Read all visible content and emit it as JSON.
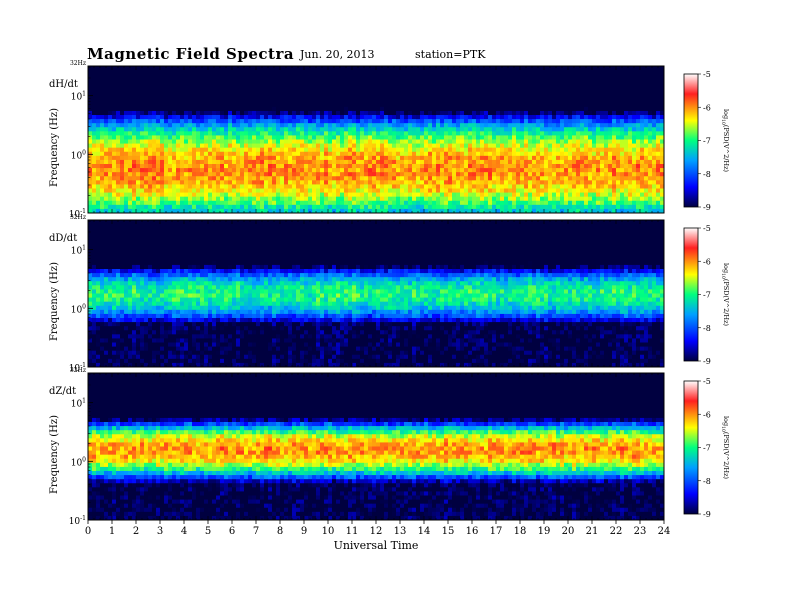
{
  "header": {
    "title": "Magnetic Field Spectra",
    "date": "Jun. 20, 2013",
    "station": "station=PTK"
  },
  "chart_data": {
    "type": "heatmap",
    "x_label": "Universal Time",
    "x_ticks": [
      "0",
      "1",
      "2",
      "3",
      "4",
      "5",
      "6",
      "7",
      "8",
      "9",
      "10",
      "11",
      "12",
      "13",
      "14",
      "15",
      "16",
      "17",
      "18",
      "19",
      "20",
      "21",
      "22",
      "23",
      "24"
    ],
    "xlim": [
      0,
      24
    ],
    "y_label": "Frequency (Hz)",
    "y_scale": "log",
    "ylim": [
      0.1,
      32
    ],
    "y_top_label": "32Hz",
    "y_ticks": [
      {
        "base": "10",
        "exp": "-1",
        "value": 0.1
      },
      {
        "base": "10",
        "exp": "0",
        "value": 1
      },
      {
        "base": "10",
        "exp": "1",
        "value": 10
      }
    ],
    "colorbar": {
      "label_parts": {
        "base": "log",
        "sub": "10",
        "rest": "(PSD(V^2/Hz)"
      },
      "range": [
        -9,
        -5
      ],
      "ticks": [
        "-5",
        "-6",
        "-7",
        "-8",
        "-9"
      ]
    },
    "panels": [
      {
        "name": "dH/dt",
        "peak_band_hz": [
          0.1,
          3
        ],
        "peak_level": -6.0,
        "background_level": -9.0
      },
      {
        "name": "dD/dt",
        "peak_band_hz": [
          1,
          3
        ],
        "peak_level": -7.0,
        "background_level": -9.0
      },
      {
        "name": "dZ/dt",
        "peak_band_hz": [
          0.8,
          3
        ],
        "peak_level": -6.0,
        "background_level": -9.0
      }
    ],
    "colors": {
      "scale": [
        "#000060",
        "#0000ff",
        "#00a0ff",
        "#00ffa0",
        "#ffff00",
        "#ff2020",
        "#ffffff"
      ]
    }
  }
}
